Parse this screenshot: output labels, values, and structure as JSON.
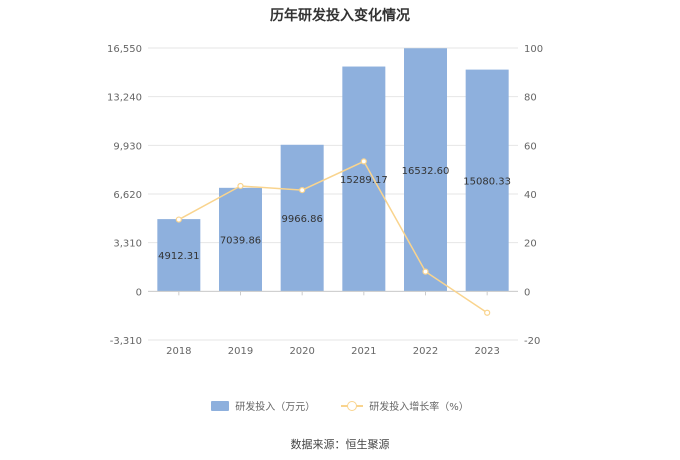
{
  "chart_data": {
    "type": "bar",
    "title": "历年研发投入变化情况",
    "categories": [
      "2018",
      "2019",
      "2020",
      "2021",
      "2022",
      "2023"
    ],
    "series": [
      {
        "name": "研发投入（万元）",
        "type": "bar",
        "axis": "left",
        "color": "#8eb0dd",
        "values": [
          4912.31,
          7039.86,
          9966.86,
          15289.17,
          16532.6,
          15080.33
        ],
        "labels": [
          "4912.31",
          "7039.86",
          "9966.86",
          "15289.17",
          "16532.60",
          "15080.33"
        ]
      },
      {
        "name": "研发投入增长率（%）",
        "type": "line",
        "axis": "right",
        "color": "#f9d48e",
        "values": [
          29.5,
          43.3,
          41.6,
          53.4,
          8.1,
          -8.8
        ]
      }
    ],
    "y_left": {
      "ticks": [
        "16,550",
        "13,240",
        "9,930",
        "6,620",
        "3,310",
        "0",
        "-3,310"
      ],
      "ylim": [
        -3310,
        16550
      ]
    },
    "y_right": {
      "ticks": [
        "100",
        "80",
        "60",
        "40",
        "20",
        "0",
        "-20"
      ],
      "ylim": [
        -20,
        100
      ]
    },
    "grid": true,
    "legend_position": "bottom"
  },
  "source": "数据来源：恒生聚源"
}
